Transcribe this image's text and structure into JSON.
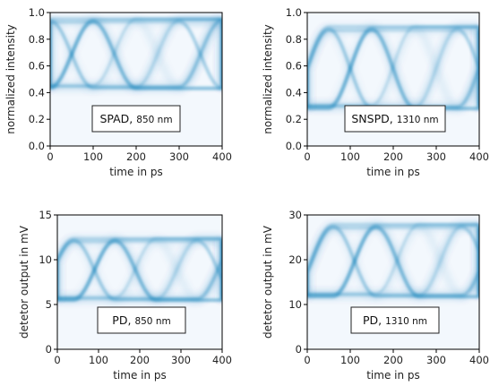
{
  "chart_data": [
    {
      "type": "line",
      "annotation": {
        "label": "SPAD,",
        "unit": "850 nm"
      },
      "xlabel": "time in ps",
      "ylabel": "normalized intensity",
      "xlim": [
        0,
        400
      ],
      "ylim": [
        0.0,
        1.0
      ],
      "xticks": [
        "0",
        "100",
        "200",
        "300",
        "400"
      ],
      "yticks": [
        "0.0",
        "0.2",
        "0.4",
        "0.6",
        "0.8",
        "1.0"
      ],
      "eye": {
        "low": 0.44,
        "high": 0.94,
        "period_ps": 200,
        "crossing_ps": [
          0,
          100,
          200,
          300,
          400
        ]
      },
      "grid": false,
      "color": "#1f77b4"
    },
    {
      "type": "line",
      "annotation": {
        "label": "SNSPD,",
        "unit": "1310 nm"
      },
      "xlabel": "time in ps",
      "ylabel": "normalized intensity",
      "xlim": [
        0,
        400
      ],
      "ylim": [
        0.0,
        1.0
      ],
      "xticks": [
        "0",
        "100",
        "200",
        "300",
        "400"
      ],
      "yticks": [
        "0.0",
        "0.2",
        "0.4",
        "0.6",
        "0.8",
        "1.0"
      ],
      "eye": {
        "low": 0.29,
        "high": 0.88,
        "period_ps": 200,
        "crossing_ps": [
          50,
          150,
          250,
          350
        ]
      },
      "grid": false,
      "color": "#1f77b4"
    },
    {
      "type": "line",
      "annotation": {
        "label": "PD,",
        "unit": "850 nm"
      },
      "xlabel": "time in ps",
      "ylabel": "detetor output in mV",
      "xlim": [
        0,
        400
      ],
      "ylim": [
        0,
        15
      ],
      "xticks": [
        "0",
        "100",
        "200",
        "300",
        "400"
      ],
      "yticks": [
        "0",
        "5",
        "10",
        "15"
      ],
      "eye": {
        "low": 5.6,
        "high": 12.2,
        "period_ps": 200,
        "crossing_ps": [
          40,
          140,
          240,
          340
        ]
      },
      "grid": false,
      "color": "#1f77b4"
    },
    {
      "type": "line",
      "annotation": {
        "label": "PD,",
        "unit": "1310 nm"
      },
      "xlabel": "time in ps",
      "ylabel": "detetor output in mV",
      "xlim": [
        0,
        400
      ],
      "ylim": [
        0,
        30
      ],
      "xticks": [
        "0",
        "100",
        "200",
        "300",
        "400"
      ],
      "yticks": [
        "0",
        "10",
        "20",
        "30"
      ],
      "eye": {
        "low": 12.0,
        "high": 27.5,
        "period_ps": 200,
        "crossing_ps": [
          60,
          160,
          260,
          360
        ]
      },
      "grid": false,
      "color": "#1f77b4"
    }
  ]
}
